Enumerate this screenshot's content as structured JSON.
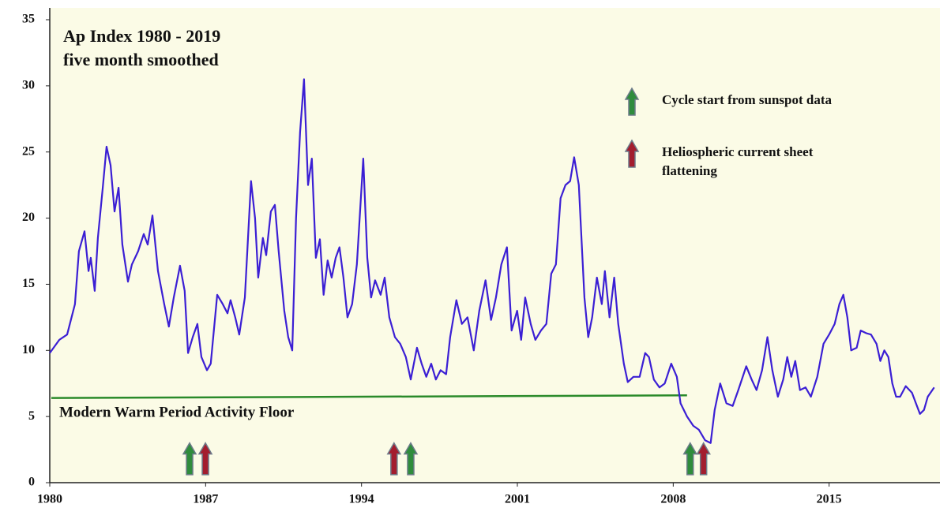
{
  "chart_data": {
    "type": "line",
    "title": [
      "Ap Index 1980 - 2019",
      "five month smoothed"
    ],
    "x": [
      1980.0,
      1980.43,
      1980.78,
      1981.13,
      1981.31,
      1981.56,
      1981.74,
      1981.84,
      1982.02,
      1982.16,
      1982.38,
      1982.55,
      1982.73,
      1982.91,
      1983.09,
      1983.26,
      1983.51,
      1983.69,
      1983.97,
      1984.22,
      1984.4,
      1984.61,
      1984.86,
      1985.14,
      1985.35,
      1985.57,
      1985.85,
      1986.06,
      1986.21,
      1986.42,
      1986.63,
      1986.81,
      1987.06,
      1987.23,
      1987.52,
      1987.77,
      1987.98,
      1988.12,
      1988.33,
      1988.51,
      1988.76,
      1989.04,
      1989.22,
      1989.36,
      1989.57,
      1989.72,
      1989.93,
      1990.11,
      1990.28,
      1990.53,
      1990.71,
      1990.89,
      1991.06,
      1991.24,
      1991.42,
      1991.6,
      1991.77,
      1991.95,
      1992.13,
      1992.3,
      1992.48,
      1992.66,
      1992.84,
      1993.01,
      1993.19,
      1993.37,
      1993.58,
      1993.79,
      1994.08,
      1994.26,
      1994.43,
      1994.61,
      1994.86,
      1995.04,
      1995.25,
      1995.5,
      1995.74,
      1995.99,
      1996.21,
      1996.49,
      1996.7,
      1996.91,
      1997.13,
      1997.34,
      1997.55,
      1997.8,
      1997.98,
      1998.26,
      1998.51,
      1998.76,
      1999.04,
      1999.29,
      1999.57,
      1999.82,
      2000.04,
      2000.28,
      2000.53,
      2000.74,
      2000.99,
      2001.17,
      2001.35,
      2001.6,
      2001.81,
      2002.06,
      2002.3,
      2002.52,
      2002.73,
      2002.94,
      2003.16,
      2003.37,
      2003.55,
      2003.76,
      2004.01,
      2004.18,
      2004.36,
      2004.57,
      2004.79,
      2004.93,
      2005.14,
      2005.35,
      2005.53,
      2005.78,
      2005.96,
      2006.21,
      2006.49,
      2006.74,
      2006.91,
      2007.13,
      2007.38,
      2007.62,
      2007.91,
      2008.16,
      2008.33,
      2008.62,
      2008.9,
      2009.15,
      2009.43,
      2009.68,
      2009.86,
      2010.11,
      2010.39,
      2010.67,
      2010.92,
      2011.28,
      2011.52,
      2011.74,
      2011.99,
      2012.23,
      2012.45,
      2012.7,
      2012.94,
      2013.12,
      2013.3,
      2013.48,
      2013.69,
      2013.94,
      2014.18,
      2014.47,
      2014.75,
      2015.0,
      2015.25,
      2015.46,
      2015.64,
      2015.82,
      2015.99,
      2016.24,
      2016.42,
      2016.67,
      2016.88,
      2017.13,
      2017.3,
      2017.48,
      2017.66,
      2017.84,
      2018.01,
      2018.19,
      2018.44,
      2018.72,
      2018.9,
      2019.08,
      2019.26,
      2019.43,
      2019.72
    ],
    "series": [
      {
        "name": "Ap Index",
        "color": "#3b1fd4",
        "values": [
          9.8,
          10.8,
          11.2,
          13.5,
          17.5,
          19.0,
          16.0,
          17.0,
          14.5,
          18.5,
          22.3,
          25.4,
          24.0,
          20.5,
          22.3,
          18.0,
          15.2,
          16.5,
          17.5,
          18.8,
          18.0,
          20.2,
          16.0,
          13.5,
          11.8,
          14.0,
          16.4,
          14.5,
          9.8,
          11.0,
          12.0,
          9.5,
          8.5,
          9.0,
          14.2,
          13.5,
          12.8,
          13.8,
          12.5,
          11.2,
          14.0,
          22.8,
          20.0,
          15.5,
          18.5,
          17.2,
          20.5,
          21.0,
          17.5,
          13.0,
          11.0,
          10.0,
          20.0,
          26.5,
          30.5,
          22.5,
          24.5,
          17.0,
          18.4,
          14.2,
          16.8,
          15.5,
          17.0,
          17.8,
          15.5,
          12.5,
          13.5,
          16.5,
          24.5,
          17.0,
          14.0,
          15.3,
          14.2,
          15.5,
          12.5,
          11.0,
          10.5,
          9.5,
          7.8,
          10.2,
          9.0,
          8.0,
          9.0,
          7.8,
          8.5,
          8.2,
          11.0,
          13.8,
          12.0,
          12.5,
          10.0,
          13.0,
          15.3,
          12.3,
          14.0,
          16.5,
          17.8,
          11.5,
          13.0,
          10.8,
          14.0,
          12.0,
          10.8,
          11.5,
          12.0,
          15.8,
          16.5,
          21.5,
          22.5,
          22.8,
          24.6,
          22.5,
          14.0,
          11.0,
          12.5,
          15.5,
          13.5,
          16.0,
          12.5,
          15.5,
          12.0,
          9.0,
          7.6,
          8.0,
          8.0,
          9.8,
          9.5,
          7.8,
          7.2,
          7.5,
          9.0,
          8.0,
          6.0,
          5.0,
          4.3,
          4.0,
          3.2,
          3.0,
          5.5,
          7.5,
          6.0,
          5.8,
          7.0,
          8.8,
          7.8,
          7.0,
          8.5,
          11.0,
          8.5,
          6.5,
          7.8,
          9.5,
          8.0,
          9.2,
          7.0,
          7.2,
          6.5,
          8.0,
          10.5,
          11.2,
          12.0,
          13.5,
          14.2,
          12.5,
          10.0,
          10.2,
          11.5,
          11.3,
          11.2,
          10.5,
          9.2,
          10.0,
          9.5,
          7.5,
          6.5,
          6.5,
          7.3,
          6.8,
          6.0,
          5.2,
          5.5,
          6.5,
          7.2
        ]
      }
    ],
    "floor": {
      "label": "Modern Warm Period Activity Floor",
      "color": "#2a8a2a",
      "x": [
        1980.07,
        2008.62
      ],
      "values": [
        6.4,
        6.6
      ]
    },
    "markers": [
      {
        "name": [
          "Cycle start from sunspot data"
        ],
        "color": "#2f8c3c",
        "x": [
          1986.28,
          1996.21,
          2008.76
        ]
      },
      {
        "name": [
          "Heliospheric current sheet",
          "flattening"
        ],
        "color": "#a31d2e",
        "x": [
          1986.99,
          1995.46,
          2009.36
        ]
      }
    ],
    "xlim": [
      1980,
      2019.8
    ],
    "ylim": [
      0,
      35
    ],
    "xticks": [
      1980,
      1987,
      1994,
      2001,
      2008,
      2015
    ],
    "yticks": [
      0,
      5,
      10,
      15,
      20,
      25,
      30,
      35
    ],
    "grid": false
  }
}
